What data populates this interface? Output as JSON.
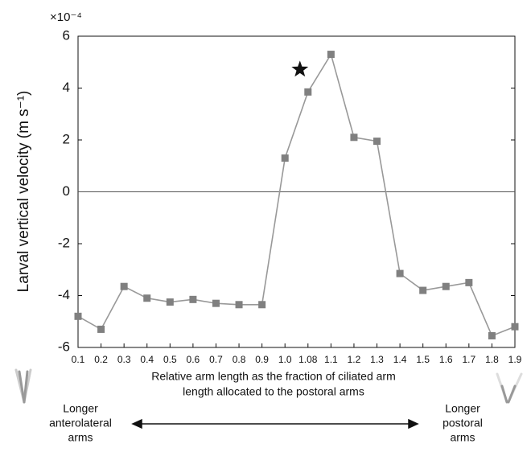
{
  "chart_data": {
    "type": "line",
    "y_label": "Larval vertical velocity (m s⁻¹)",
    "y_offset_label": "×10⁻⁴",
    "x_label_lines": [
      "Relative arm length as the fraction of ciliated arm",
      "length allocated to the postoral arms"
    ],
    "left_note_lines": [
      "Longer",
      "anterolateral",
      "arms"
    ],
    "right_note_lines": [
      "Longer",
      "postoral",
      "arms"
    ],
    "categories": [
      "0.1",
      "0.2",
      "0.3",
      "0.4",
      "0.5",
      "0.6",
      "0.7",
      "0.8",
      "0.9",
      "1.0",
      "1.08",
      "1.1",
      "1.2",
      "1.3",
      "1.4",
      "1.5",
      "1.6",
      "1.7",
      "1.8",
      "1.9"
    ],
    "values": [
      -4.8,
      -5.3,
      -3.65,
      -4.1,
      -4.25,
      -4.15,
      -4.3,
      -4.35,
      -4.35,
      1.3,
      3.85,
      5.3,
      2.1,
      1.95,
      -3.15,
      -3.8,
      -3.65,
      -3.5,
      -5.55,
      -5.2
    ],
    "color": "#808080",
    "ylim": [
      -6,
      6
    ],
    "yticks": [
      -6,
      -4,
      -2,
      0,
      2,
      4,
      6
    ]
  }
}
